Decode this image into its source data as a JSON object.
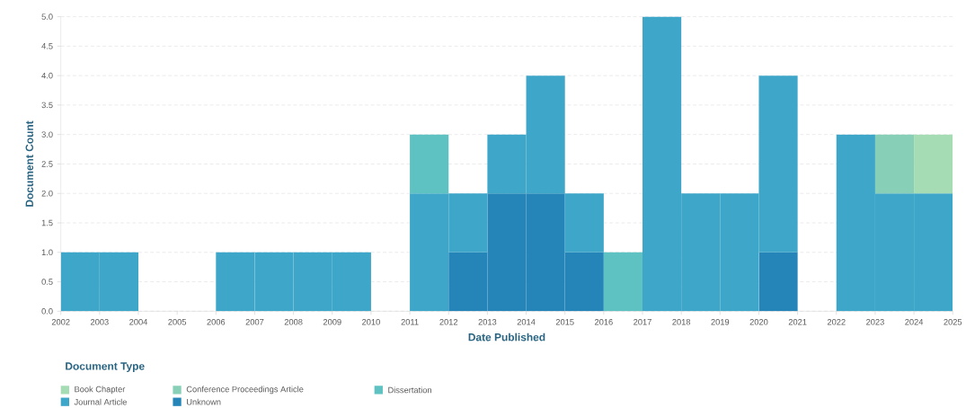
{
  "chart_data": {
    "type": "bar",
    "stacked": true,
    "xlabel": "Date Published",
    "ylabel": "Document Count",
    "legend_title": "Document Type",
    "x": [
      2002.5,
      2003.5,
      2004.5,
      2005.5,
      2006.5,
      2007.5,
      2008.5,
      2009.5,
      2010.5,
      2011.5,
      2012.5,
      2013.5,
      2014.5,
      2015.5,
      2016.5,
      2017.5,
      2018.5,
      2019.5,
      2020.5,
      2021.5,
      2022.5,
      2023.5,
      2024.5
    ],
    "series": [
      {
        "name": "Unknown",
        "color": "#2585b9",
        "values": [
          null,
          null,
          null,
          null,
          null,
          null,
          null,
          null,
          null,
          null,
          1,
          2,
          2,
          1,
          null,
          null,
          null,
          null,
          1,
          null,
          null,
          null,
          null
        ]
      },
      {
        "name": "Journal Article",
        "color": "#3ea6c8",
        "values": [
          1,
          1,
          null,
          null,
          1,
          1,
          1,
          1,
          null,
          2,
          1,
          1,
          2,
          1,
          null,
          5,
          2,
          2,
          3,
          null,
          3,
          2,
          2
        ]
      },
      {
        "name": "Dissertation",
        "color": "#5ec2c2",
        "values": [
          null,
          null,
          null,
          null,
          null,
          null,
          null,
          null,
          null,
          1,
          null,
          null,
          null,
          null,
          1,
          null,
          null,
          null,
          null,
          null,
          null,
          null,
          null
        ]
      },
      {
        "name": "Conference Proceedings Article",
        "color": "#88cfb8",
        "values": [
          null,
          null,
          null,
          null,
          null,
          null,
          null,
          null,
          null,
          null,
          null,
          null,
          null,
          null,
          null,
          null,
          null,
          null,
          null,
          null,
          null,
          1,
          null
        ]
      },
      {
        "name": "Book Chapter",
        "color": "#a6dcb4",
        "values": [
          null,
          null,
          null,
          null,
          null,
          null,
          null,
          null,
          null,
          null,
          null,
          null,
          null,
          null,
          null,
          null,
          null,
          null,
          null,
          null,
          null,
          null,
          1
        ]
      }
    ],
    "xlim": [
      2002,
      2025
    ],
    "xticks": [
      2002,
      2003,
      2004,
      2005,
      2006,
      2007,
      2008,
      2009,
      2010,
      2011,
      2012,
      2013,
      2014,
      2015,
      2016,
      2017,
      2018,
      2019,
      2020,
      2021,
      2022,
      2023,
      2024,
      2025
    ],
    "ylim": [
      0,
      5
    ],
    "yticks": [
      {
        "value": 0,
        "label": "0.0"
      },
      {
        "value": 0.5,
        "label": "0.5"
      },
      {
        "value": 1,
        "label": "1.0"
      },
      {
        "value": 1.5,
        "label": "1.5"
      },
      {
        "value": 2,
        "label": "2.0"
      },
      {
        "value": 2.5,
        "label": "2.5"
      },
      {
        "value": 3,
        "label": "3.0"
      },
      {
        "value": 3.5,
        "label": "3.5"
      },
      {
        "value": 4,
        "label": "4.0"
      },
      {
        "value": 4.5,
        "label": "4.5"
      },
      {
        "value": 5,
        "label": "5.0"
      }
    ],
    "grid": "y",
    "legend": "bottom"
  }
}
